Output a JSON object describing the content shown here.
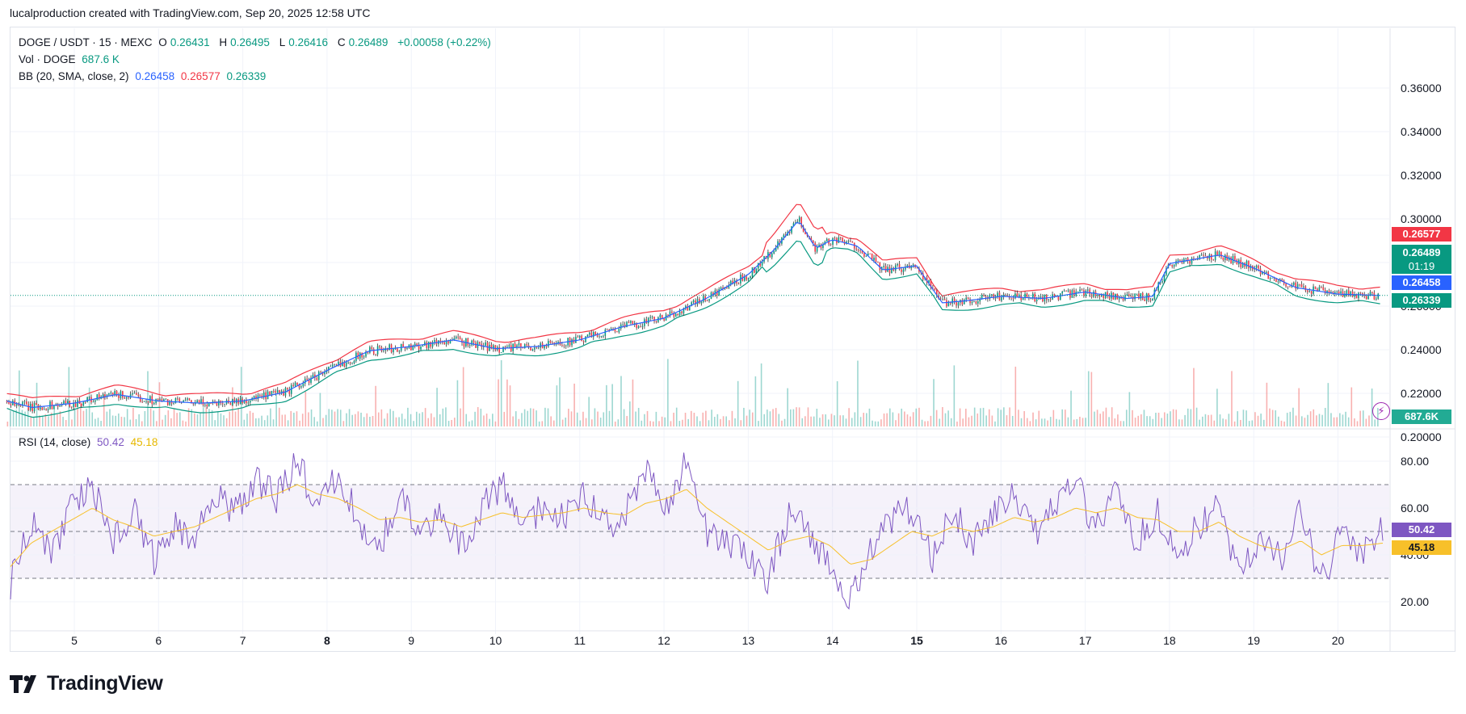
{
  "header": {
    "attribution": "lucalproduction created with TradingView.com, Sep 20, 2025 12:58 UTC"
  },
  "legend": {
    "symbol": "DOGE / USDT · 15 · MEXC",
    "o_label": "O",
    "o": "0.26431",
    "h_label": "H",
    "h": "0.26495",
    "l_label": "L",
    "l": "0.26416",
    "c_label": "C",
    "c": "0.26489",
    "change": "+0.00058 (+0.22%)",
    "vol_label": "Vol · DOGE",
    "vol": "687.6 K",
    "bb_label": "BB (20, SMA, close, 2)",
    "bb_basis": "0.26458",
    "bb_upper": "0.26577",
    "bb_lower": "0.26339",
    "rsi_label": "RSI (14, close)",
    "rsi": "50.42",
    "rsi_ma": "45.18"
  },
  "price_tags": {
    "upper": "0.26577",
    "last": "0.26489",
    "countdown": "01:19",
    "basis": "0.26458",
    "lower": "0.26339",
    "volume": "687.6K",
    "rsi": "50.42",
    "rsi_ma": "45.18"
  },
  "colors": {
    "up": "#089981",
    "down": "#f23645",
    "basis": "#2962ff",
    "rsi": "#7e57c2",
    "rsi_ma": "#f7c02a"
  },
  "footer": {
    "brand": "TradingView"
  },
  "chart_data": [
    {
      "type": "line",
      "title": "DOGE / USDT · 15 · MEXC",
      "x_ticks": [
        "5",
        "6",
        "7",
        "8",
        "9",
        "10",
        "11",
        "12",
        "13",
        "14",
        "15",
        "16",
        "17",
        "18",
        "19",
        "20"
      ],
      "y_ticks": [
        "0.36000",
        "0.34000",
        "0.32000",
        "0.30000",
        "0.28000",
        "0.26000",
        "0.24000",
        "0.22000",
        "0.20000"
      ],
      "ylim": [
        0.19,
        0.365
      ],
      "series": [
        {
          "name": "Close",
          "x": [
            4.2,
            4.5,
            5.0,
            5.5,
            6.0,
            6.5,
            7.0,
            7.5,
            8.0,
            8.5,
            9.0,
            9.5,
            10.0,
            10.5,
            11.0,
            11.5,
            12.0,
            12.5,
            13.0,
            13.3,
            13.6,
            13.8,
            14.0,
            14.3,
            14.6,
            15.0,
            15.3,
            15.6,
            16.0,
            16.5,
            17.0,
            17.5,
            17.8,
            18.0,
            18.3,
            18.6,
            19.0,
            19.5,
            20.0,
            20.5
          ],
          "values": [
            0.2165,
            0.2135,
            0.2155,
            0.2195,
            0.2165,
            0.2155,
            0.2165,
            0.2205,
            0.2305,
            0.2395,
            0.2415,
            0.2445,
            0.2405,
            0.2415,
            0.2445,
            0.2505,
            0.2545,
            0.2635,
            0.2745,
            0.2855,
            0.2995,
            0.2865,
            0.2905,
            0.2875,
            0.2765,
            0.2785,
            0.2615,
            0.2625,
            0.2645,
            0.2635,
            0.2665,
            0.2635,
            0.2645,
            0.2795,
            0.2815,
            0.2835,
            0.2775,
            0.2685,
            0.2655,
            0.2649
          ]
        }
      ]
    },
    {
      "type": "line",
      "title": "RSI (14, close)",
      "y_ticks": [
        "80.00",
        "60.00",
        "40.00",
        "20.00"
      ],
      "ylim": [
        15,
        85
      ],
      "series": [
        {
          "name": "RSI",
          "values": [
            28,
            55,
            40,
            62,
            70,
            45,
            60,
            38,
            52,
            48,
            66,
            58,
            72,
            64,
            80,
            60,
            74,
            55,
            42,
            65,
            50,
            58,
            44,
            60,
            70,
            48,
            62,
            55,
            68,
            52,
            58,
            75,
            60,
            80,
            50,
            44,
            40,
            30,
            58,
            48,
            36,
            20,
            42,
            55,
            60,
            38,
            58,
            46,
            56,
            65,
            48,
            60,
            72,
            50,
            66,
            45,
            58,
            40,
            52,
            62,
            30,
            45,
            38,
            60,
            28,
            50,
            42,
            50
          ]
        },
        {
          "name": "RSI MA",
          "values": [
            35,
            45,
            50,
            55,
            60,
            55,
            52,
            48,
            50,
            52,
            56,
            60,
            64,
            66,
            70,
            66,
            64,
            60,
            55,
            56,
            54,
            55,
            52,
            55,
            58,
            56,
            57,
            58,
            60,
            58,
            57,
            62,
            64,
            68,
            60,
            54,
            48,
            42,
            46,
            48,
            44,
            36,
            38,
            44,
            50,
            48,
            52,
            50,
            52,
            56,
            54,
            56,
            60,
            58,
            60,
            56,
            55,
            50,
            50,
            54,
            48,
            44,
            42,
            46,
            40,
            44,
            44,
            45
          ]
        }
      ]
    }
  ]
}
